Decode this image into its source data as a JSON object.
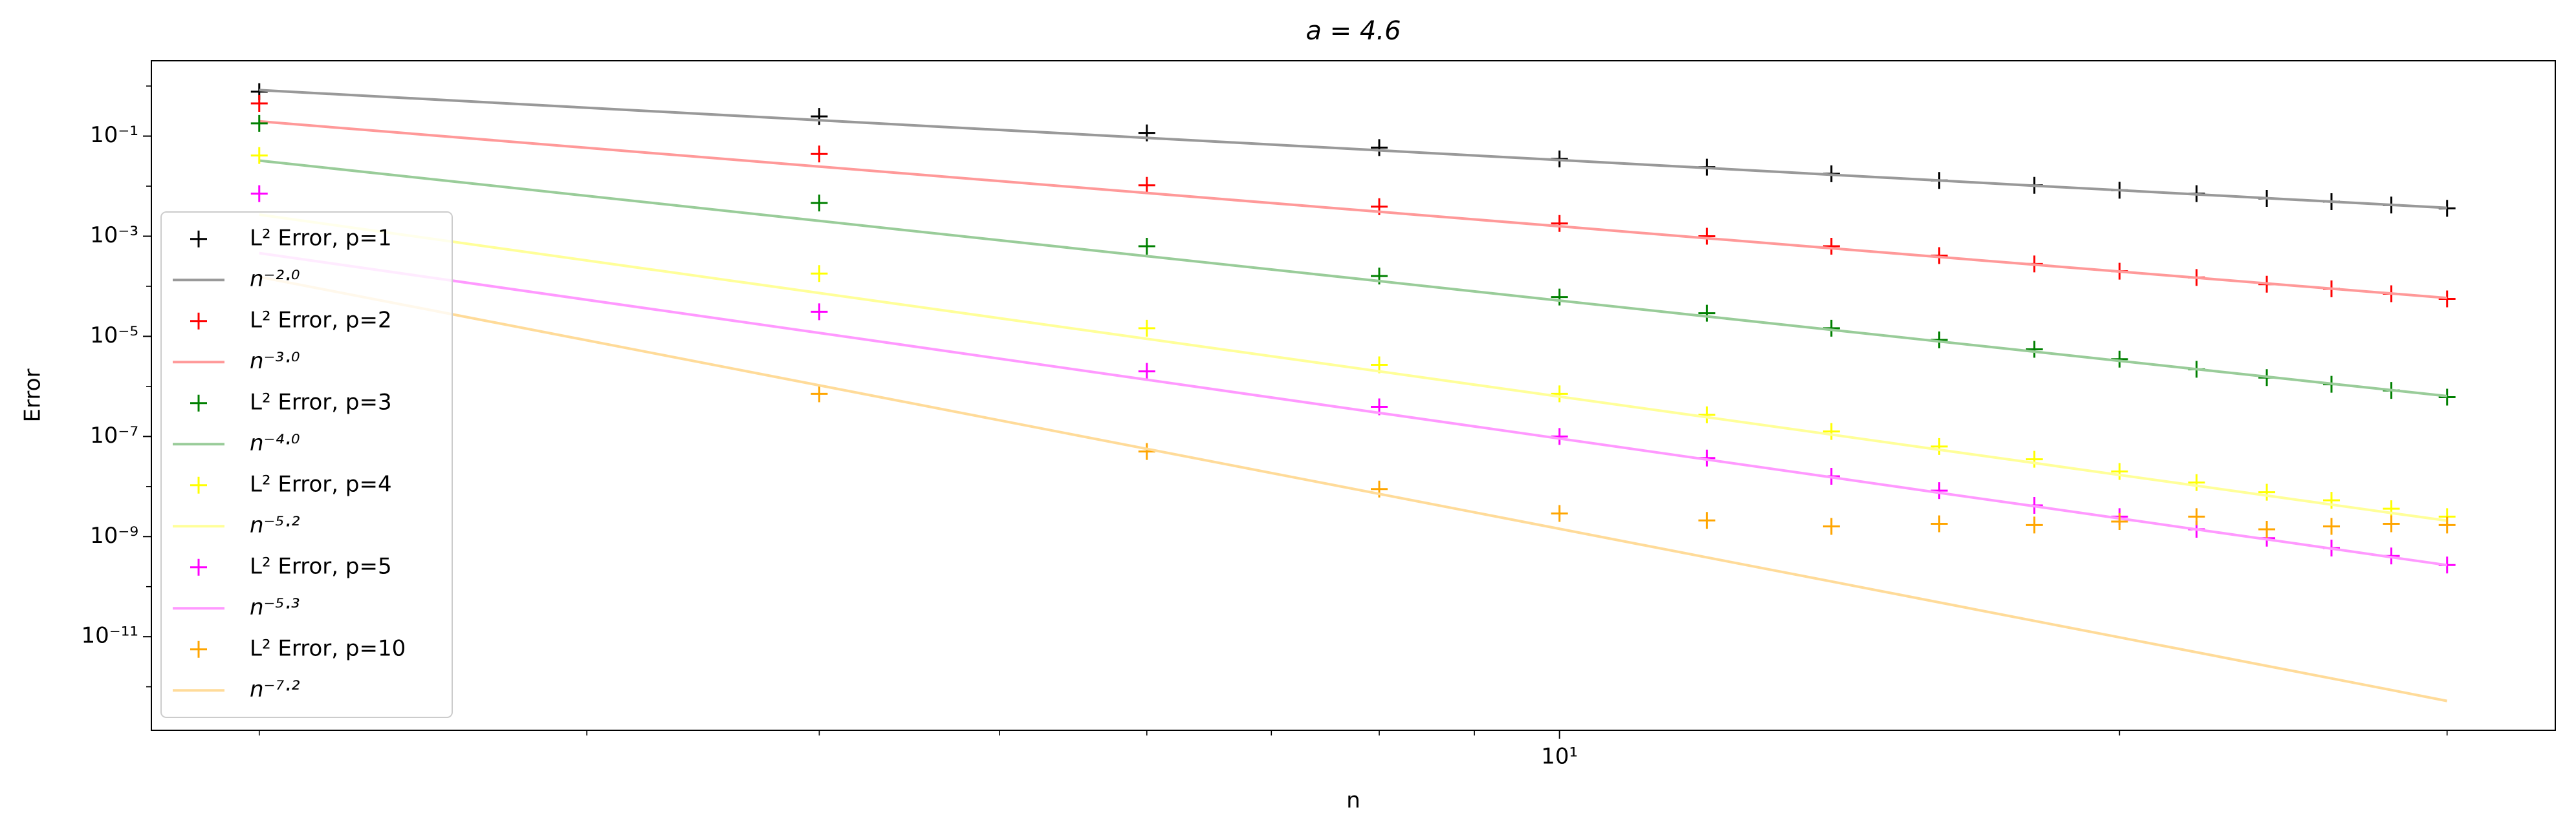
{
  "chart_data": {
    "type": "line",
    "title": "a = 4.6",
    "xlabel": "n",
    "ylabel": "Error",
    "x": [
      2,
      4,
      6,
      8,
      10,
      12,
      14,
      16,
      18,
      20,
      22,
      24,
      26,
      28,
      30
    ],
    "xscale": "log",
    "yscale": "log",
    "xlim": [
      1.75,
      34.3
    ],
    "ylim": [
      1.35e-13,
      3.2
    ],
    "xticks": [
      {
        "value": 10,
        "label": "10¹"
      }
    ],
    "xminor_ticks": [
      2,
      3,
      4,
      5,
      6,
      7,
      8,
      9,
      20,
      30
    ],
    "yticks": [
      {
        "value": 1e-11,
        "label": "10⁻¹¹"
      },
      {
        "value": 1e-09,
        "label": "10⁻⁹"
      },
      {
        "value": 1e-07,
        "label": "10⁻⁷"
      },
      {
        "value": 1e-05,
        "label": "10⁻⁵"
      },
      {
        "value": 0.001,
        "label": "10⁻³"
      },
      {
        "value": 0.1,
        "label": "10⁻¹"
      }
    ],
    "yminor_ticks": [
      1e-12,
      1e-10,
      1e-08,
      1e-06,
      0.0001,
      0.01,
      1
    ],
    "grid": false,
    "legend": "lower left",
    "series": [
      {
        "name": "L² Error, p=1",
        "type": "scatter",
        "color": "#000000",
        "values": [
          0.77,
          0.247,
          0.116,
          0.059,
          0.035,
          0.024,
          0.0177,
          0.013,
          0.0104,
          0.0083,
          0.0071,
          0.0057,
          0.0049,
          0.0042,
          0.0036
        ]
      },
      {
        "name": "n⁻²·⁰",
        "type": "line",
        "color": "#999999",
        "values": [
          0.83,
          0.2075,
          0.0922,
          0.0519,
          0.0332,
          0.0231,
          0.0169,
          0.013,
          0.0102,
          0.0083,
          0.00686,
          0.00576,
          0.00491,
          0.00423,
          0.00369
        ]
      },
      {
        "name": "L² Error, p=2",
        "type": "scatter",
        "color": "#ff0000",
        "values": [
          0.45,
          0.044,
          0.0104,
          0.0039,
          0.0018,
          0.001,
          0.00063,
          0.00041,
          0.00028,
          0.0002,
          0.00015,
          0.00011,
          8.9e-05,
          7.1e-05,
          5.6e-05
        ]
      },
      {
        "name": "n⁻³·⁰",
        "type": "line",
        "color": "#ff9999",
        "values": [
          0.197,
          0.0246,
          0.0073,
          0.00308,
          0.00158,
          0.000912,
          0.000574,
          0.000385,
          0.00027,
          0.000197,
          0.000148,
          0.000114,
          8.97e-05,
          7.18e-05,
          5.84e-05
        ]
      },
      {
        "name": "L² Error, p=3",
        "type": "scatter",
        "color": "#008000",
        "values": [
          0.18,
          0.0046,
          0.00063,
          0.00016,
          6.1e-05,
          2.9e-05,
          1.45e-05,
          8.5e-06,
          5.5e-06,
          3.5e-06,
          2.2e-06,
          1.5e-06,
          1.1e-06,
          8.3e-07,
          6.1e-07
        ]
      },
      {
        "name": "n⁻⁴·⁰",
        "type": "line",
        "color": "#99cc99",
        "values": [
          0.0324,
          0.002025,
          0.0004,
          0.000127,
          5.18e-05,
          2.5e-05,
          1.35e-05,
          7.91e-06,
          4.94e-06,
          3.24e-06,
          2.21e-06,
          1.56e-06,
          1.13e-06,
          8.43e-07,
          6.4e-07
        ]
      },
      {
        "name": "L² Error, p=4",
        "type": "scatter",
        "color": "#ffff00",
        "values": [
          0.041,
          0.00018,
          1.45e-05,
          2.7e-06,
          7.1e-07,
          2.7e-07,
          1.26e-07,
          6.3e-08,
          3.5e-08,
          2e-08,
          1.2e-08,
          7.7e-09,
          5.3e-09,
          3.6e-09,
          2.5e-09
        ]
      },
      {
        "name": "n⁻⁵·²",
        "type": "line",
        "color": "#ffff99",
        "values": [
          0.0027,
          7.34e-05,
          8.92e-06,
          2e-06,
          6.26e-07,
          2.43e-07,
          1.09e-07,
          5.43e-08,
          2.95e-08,
          1.7e-08,
          1.04e-08,
          6.6e-09,
          4.35e-09,
          2.96e-09,
          2.08e-09
        ]
      },
      {
        "name": "L² Error, p=5",
        "type": "scatter",
        "color": "#ff00ff",
        "values": [
          0.0071,
          3.1e-05,
          2e-06,
          3.9e-07,
          1e-07,
          3.7e-08,
          1.6e-08,
          8.3e-09,
          4.2e-09,
          2.5e-09,
          1.4e-09,
          9.3e-10,
          5.9e-10,
          4.1e-10,
          2.7e-10
        ]
      },
      {
        "name": "n⁻⁵·³",
        "type": "line",
        "color": "#ff99ff",
        "values": [
          0.00046,
          1.17e-05,
          1.36e-06,
          2.96e-07,
          9.09e-08,
          3.46e-08,
          1.53e-08,
          7.5e-09,
          4.04e-09,
          2.31e-09,
          1.39e-09,
          8.8e-10,
          5.75e-10,
          3.87e-10,
          2.69e-10
        ]
      },
      {
        "name": "L² Error, p=10",
        "type": "scatter",
        "color": "#ffa500",
        "values": [
          null,
          7.1e-07,
          5e-08,
          8.9e-09,
          2.9e-09,
          2.1e-09,
          1.6e-09,
          1.8e-09,
          1.7e-09,
          2e-09,
          2.5e-09,
          1.4e-09,
          1.6e-09,
          1.8e-09,
          1.7e-09
        ]
      },
      {
        "name": "n⁻⁷·²",
        "type": "line",
        "color": "#ffdb99",
        "values": [
          0.000154,
          1.05e-06,
          5.65e-08,
          7.13e-09,
          1.43e-09,
          3.84e-10,
          1.27e-10,
          4.84e-11,
          2.07e-11,
          9.7e-12,
          4.89e-12,
          2.61e-12,
          1.47e-12,
          8.6e-13,
          5.2e-13
        ]
      }
    ]
  }
}
